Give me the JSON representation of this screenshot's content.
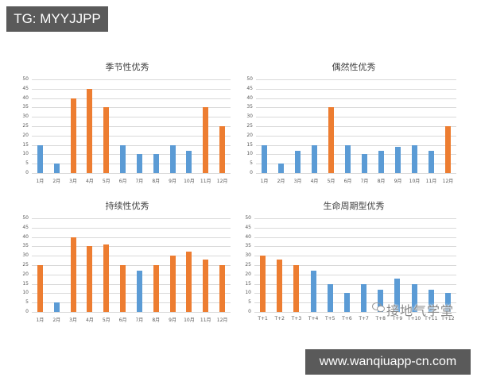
{
  "banners": {
    "top": "TG: MYYJJPP",
    "bottom": "www.wanqiuapp-cn.com"
  },
  "watermark": "接地气学堂",
  "colors": {
    "blue": "#5b9bd5",
    "orange": "#ed7d31",
    "grid": "#d9d9d9"
  },
  "chart_data": [
    {
      "type": "bar",
      "title": "季节性优秀",
      "categories": [
        "1月",
        "2月",
        "3月",
        "4月",
        "5月",
        "6月",
        "7月",
        "8月",
        "9月",
        "10月",
        "11月",
        "12月"
      ],
      "values": [
        15,
        5,
        40,
        45,
        35,
        15,
        10,
        10,
        15,
        12,
        35,
        25
      ],
      "highlight": [
        false,
        false,
        true,
        true,
        true,
        false,
        false,
        false,
        false,
        false,
        true,
        true
      ],
      "xlabel": "",
      "ylabel": "",
      "ylim": [
        0,
        50
      ],
      "yticks": [
        0,
        5,
        10,
        15,
        20,
        25,
        30,
        35,
        40,
        45,
        50
      ],
      "grid": true,
      "legend": "none"
    },
    {
      "type": "bar",
      "title": "偶然性优秀",
      "categories": [
        "1月",
        "2月",
        "3月",
        "4月",
        "5月",
        "6月",
        "7月",
        "8月",
        "9月",
        "10月",
        "11月",
        "12月"
      ],
      "values": [
        15,
        5,
        12,
        15,
        35,
        15,
        10,
        12,
        14,
        15,
        12,
        25
      ],
      "highlight": [
        false,
        false,
        false,
        false,
        true,
        false,
        false,
        false,
        false,
        false,
        false,
        true
      ],
      "xlabel": "",
      "ylabel": "",
      "ylim": [
        0,
        50
      ],
      "yticks": [
        0,
        5,
        10,
        15,
        20,
        25,
        30,
        35,
        40,
        45,
        50
      ],
      "grid": true,
      "legend": "none"
    },
    {
      "type": "bar",
      "title": "持续性优秀",
      "categories": [
        "1月",
        "2月",
        "3月",
        "4月",
        "5月",
        "6月",
        "7月",
        "8月",
        "9月",
        "10月",
        "11月",
        "12月"
      ],
      "values": [
        25,
        5,
        40,
        35,
        36,
        25,
        22,
        25,
        30,
        32,
        28,
        25
      ],
      "highlight": [
        true,
        false,
        true,
        true,
        true,
        true,
        false,
        true,
        true,
        true,
        true,
        true
      ],
      "xlabel": "",
      "ylabel": "",
      "ylim": [
        0,
        50
      ],
      "yticks": [
        0,
        5,
        10,
        15,
        20,
        25,
        30,
        35,
        40,
        45,
        50
      ],
      "grid": true,
      "legend": "none"
    },
    {
      "type": "bar",
      "title": "生命周期型优秀",
      "categories": [
        "T+1",
        "T+2",
        "T+3",
        "T+4",
        "T+5",
        "T+6",
        "T+7",
        "T+8",
        "T+9",
        "T+10",
        "T+11",
        "T+12"
      ],
      "values": [
        30,
        28,
        25,
        22,
        15,
        10,
        15,
        12,
        18,
        15,
        12,
        10
      ],
      "highlight": [
        true,
        true,
        true,
        false,
        false,
        false,
        false,
        false,
        false,
        false,
        false,
        false
      ],
      "xlabel": "",
      "ylabel": "",
      "ylim": [
        0,
        50
      ],
      "yticks": [
        0,
        5,
        10,
        15,
        20,
        25,
        30,
        35,
        40,
        45,
        50
      ],
      "grid": true,
      "legend": "none"
    }
  ]
}
